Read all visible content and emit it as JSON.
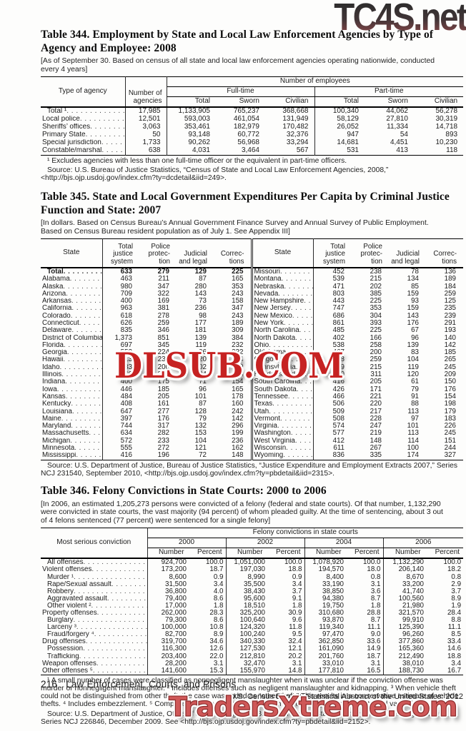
{
  "watermarks": {
    "top": {
      "text": "TC4S.net",
      "color_top": "#2c2c2c",
      "color_bottom": "#94494b"
    },
    "middle": {
      "text": "DLSUB.COM",
      "color": "#c62222"
    },
    "bottom": {
      "text": "TradersXtreme.com",
      "color": "#cf5858"
    }
  },
  "table344": {
    "title": "Table 344. Employment by State and Local Law Enforcement Agencies by Type of Agency and Employee: 2008",
    "bracket_note": "[As of September 30. Based on census of all state and local law enforcement agencies operating nationwide, conducted every 4 years]",
    "headers": {
      "type": "Type of agency",
      "agencies": "Number of agencies",
      "employees": "Number of employees",
      "fulltime": "Full-time",
      "parttime": "Part-time",
      "sub": [
        "Total",
        "Sworn",
        "Civilian",
        "Total",
        "Sworn",
        "Civilian"
      ]
    },
    "rows": [
      {
        "label": "Total ¹",
        "bold": true,
        "values": [
          "17,985",
          "1,133,905",
          "765,237",
          "368,668",
          "100,340",
          "44,062",
          "56,278"
        ]
      },
      {
        "label": "Local police",
        "bold": false,
        "values": [
          "12,501",
          "593,003",
          "461,054",
          "131,949",
          "58,129",
          "27,810",
          "30,319"
        ]
      },
      {
        "label": "Sheriffs’ offices",
        "bold": false,
        "values": [
          "3,063",
          "353,461",
          "182,979",
          "170,482",
          "26,052",
          "11,334",
          "14,718"
        ]
      },
      {
        "label": "Primary State",
        "bold": false,
        "values": [
          "50",
          "93,148",
          "60,772",
          "32,376",
          "947",
          "54",
          "893"
        ]
      },
      {
        "label": "Special jurisdiction",
        "bold": false,
        "values": [
          "1,733",
          "90,262",
          "56,968",
          "33,294",
          "14,681",
          "4,451",
          "10,230"
        ]
      },
      {
        "label": "Constable/marshal",
        "bold": false,
        "values": [
          "638",
          "4,031",
          "3,464",
          "567",
          "531",
          "413",
          "118"
        ]
      }
    ],
    "footnote": "¹ Excludes agencies with less than one full-time officer or the equivalent in part-time officers.",
    "source": "Source: U.S. Bureau of Justice Statistics, “Census of State and Local Law Enforcement Agencies, 2008,” <http://bjs.ojp.usdoj.gov/index.cfm?ty=dcdetail&iid=249>."
  },
  "table345": {
    "title": "Table 345. State and Local Government Expenditures Per Capita by Criminal Justice Function and State: 2007",
    "bracket_note": "[In dollars. Based on Census Bureau’s Annual Government Finance Survey and Annual Survey of Public Employment. Based on Census Bureau resident population as of July 1. See Appendix III]",
    "headers": {
      "state": "State",
      "total": "Total justice system",
      "police": "Police protec-tion",
      "judicial": "Judicial and legal",
      "corrections": "Correc-tions"
    },
    "rows": [
      {
        "bold": true,
        "left": [
          "Total",
          "633",
          "279",
          "129",
          "225"
        ],
        "right": [
          "Missouri",
          "452",
          "238",
          "78",
          "136"
        ]
      },
      {
        "bold": false,
        "left": [
          "Alabama",
          "463",
          "211",
          "87",
          "165"
        ],
        "right": [
          "Montana",
          "539",
          "215",
          "134",
          "189"
        ]
      },
      {
        "bold": false,
        "left": [
          "Alaska",
          "980",
          "347",
          "280",
          "353"
        ],
        "right": [
          "Nebraska",
          "471",
          "202",
          "85",
          "184"
        ]
      },
      {
        "bold": false,
        "left": [
          "Arizona",
          "709",
          "322",
          "143",
          "243"
        ],
        "right": [
          "Nevada",
          "803",
          "385",
          "159",
          "259"
        ]
      },
      {
        "bold": false,
        "left": [
          "Arkansas",
          "400",
          "169",
          "73",
          "158"
        ],
        "right": [
          "New Hampshire",
          "443",
          "225",
          "93",
          "125"
        ]
      },
      {
        "bold": false,
        "left": [
          "California",
          "963",
          "381",
          "236",
          "347"
        ],
        "right": [
          "New Jersey",
          "747",
          "353",
          "159",
          "235"
        ]
      },
      {
        "bold": false,
        "left": [
          "Colorado",
          "618",
          "278",
          "98",
          "243"
        ],
        "right": [
          "New Mexico",
          "686",
          "304",
          "143",
          "239"
        ]
      },
      {
        "bold": false,
        "left": [
          "Connecticut",
          "626",
          "259",
          "177",
          "189"
        ],
        "right": [
          "New York",
          "861",
          "393",
          "176",
          "291"
        ]
      },
      {
        "bold": false,
        "left": [
          "Delaware",
          "835",
          "346",
          "181",
          "309"
        ],
        "right": [
          "North Carolina",
          "485",
          "225",
          "67",
          "193"
        ]
      },
      {
        "bold": false,
        "left": [
          "District of Columbia",
          "1,373",
          "851",
          "139",
          "384"
        ],
        "right": [
          "North Dakota",
          "402",
          "166",
          "96",
          "140"
        ]
      },
      {
        "bold": false,
        "left": [
          "Florida",
          "697",
          "345",
          "119",
          "232"
        ],
        "right": [
          "Ohio",
          "538",
          "258",
          "139",
          "142"
        ]
      },
      {
        "bold": false,
        "left": [
          "Georgia",
          "552",
          "224",
          "96",
          "232"
        ],
        "right": [
          "Oklahoma",
          "467",
          "200",
          "83",
          "185"
        ]
      },
      {
        "bold": false,
        "left": [
          "Hawaii",
          "613",
          "239",
          "220",
          "154"
        ],
        "right": [
          "Oregon",
          "628",
          "259",
          "104",
          "265"
        ]
      },
      {
        "bold": false,
        "left": [
          "Idaho",
          "483",
          "200",
          "102",
          "180"
        ],
        "right": [
          "Pennsylvania",
          "579",
          "215",
          "119",
          "245"
        ]
      },
      {
        "bold": false,
        "left": [
          "Illinois",
          "566",
          "317",
          "104",
          "146"
        ],
        "right": [
          "Rhode Island",
          "640",
          "311",
          "120",
          "209"
        ]
      },
      {
        "bold": false,
        "left": [
          "Indiana",
          "400",
          "175",
          "71",
          "154"
        ],
        "right": [
          "South Carolina",
          "416",
          "205",
          "61",
          "150"
        ]
      },
      {
        "bold": false,
        "left": [
          "Iowa",
          "446",
          "185",
          "96",
          "165"
        ],
        "right": [
          "South Dakota",
          "426",
          "171",
          "79",
          "176"
        ]
      },
      {
        "bold": false,
        "left": [
          "Kansas",
          "484",
          "205",
          "101",
          "178"
        ],
        "right": [
          "Tennessee",
          "466",
          "221",
          "91",
          "154"
        ]
      },
      {
        "bold": false,
        "left": [
          "Kentucky",
          "408",
          "161",
          "87",
          "160"
        ],
        "right": [
          "Texas",
          "506",
          "220",
          "88",
          "198"
        ]
      },
      {
        "bold": false,
        "left": [
          "Louisiana",
          "647",
          "277",
          "128",
          "242"
        ],
        "right": [
          "Utah",
          "509",
          "217",
          "113",
          "179"
        ]
      },
      {
        "bold": false,
        "left": [
          "Maine",
          "397",
          "176",
          "79",
          "142"
        ],
        "right": [
          "Vermont",
          "508",
          "228",
          "97",
          "183"
        ]
      },
      {
        "bold": false,
        "left": [
          "Maryland",
          "744",
          "317",
          "132",
          "296"
        ],
        "right": [
          "Virginia",
          "574",
          "247",
          "101",
          "226"
        ]
      },
      {
        "bold": false,
        "left": [
          "Massachusetts",
          "634",
          "282",
          "153",
          "199"
        ],
        "right": [
          "Washington",
          "577",
          "219",
          "113",
          "245"
        ]
      },
      {
        "bold": false,
        "left": [
          "Michigan",
          "572",
          "233",
          "104",
          "236"
        ],
        "right": [
          "West Virginia",
          "412",
          "148",
          "114",
          "151"
        ]
      },
      {
        "bold": false,
        "left": [
          "Minnesota",
          "555",
          "272",
          "121",
          "162"
        ],
        "right": [
          "Wisconsin",
          "611",
          "267",
          "100",
          "244"
        ]
      },
      {
        "bold": false,
        "left": [
          "Mississippi",
          "416",
          "196",
          "72",
          "148"
        ],
        "right": [
          "Wyoming",
          "836",
          "335",
          "174",
          "327"
        ]
      }
    ],
    "source": "Source: U.S. Department of Justice, Bureau of Justice Statistics, “Justice Expenditure and Employment Extracts 2007,” Series NCJ 231540, September 2010, <http://bjs.ojp.usdoj.gov/index.cfm?ty=pbdetail&iid=2315>."
  },
  "table346": {
    "title": "Table 346. Felony Convictions in State Courts: 2000 to 2006",
    "bracket_note": "[In 2006, an estimated 1,205,273 persons were convicted of a felony (federal and state courts). Of that number, 1,132,290 were convicted in state courts, the vast majority (94 percent) of whom pleaded guilty. At the time of sentencing, about 3 out of 4 felons sentenced (77 percent) were sentenced for a single felony]",
    "headers": {
      "conviction": "Most serious conviction",
      "group": "Felony convictions in state courts",
      "years": [
        "2000",
        "2002",
        "2004",
        "2006"
      ],
      "number": "Number",
      "percent": "Percent"
    },
    "rows": [
      {
        "label": "All offenses",
        "indent": 1,
        "values": [
          "924,700",
          "100.0",
          "1,051,000",
          "100.0",
          "1,078,920",
          "100.0",
          "1,132,290",
          "100.0"
        ]
      },
      {
        "label": "Violent offenses",
        "indent": 0,
        "values": [
          "173,200",
          "18.7",
          "197,030",
          "18.8",
          "194,570",
          "18.0",
          "206,140",
          "18.2"
        ]
      },
      {
        "label": "Murder ¹",
        "indent": 1,
        "values": [
          "8,600",
          "0.9",
          "8,990",
          "0.9",
          "8,400",
          "0.8",
          "8,670",
          "0.8"
        ]
      },
      {
        "label": "Rape/Sexual assault",
        "indent": 1,
        "values": [
          "31,500",
          "3.4",
          "35,500",
          "3.4",
          "33,190",
          "3.1",
          "33,200",
          "2.9"
        ]
      },
      {
        "label": "Robbery",
        "indent": 1,
        "values": [
          "36,800",
          "4.0",
          "38,430",
          "3.7",
          "38,850",
          "3.6",
          "41,740",
          "3.7"
        ]
      },
      {
        "label": "Aggravated assault",
        "indent": 1,
        "values": [
          "79,400",
          "8.6",
          "95,600",
          "9.1",
          "94,380",
          "8.7",
          "100,560",
          "8.9"
        ]
      },
      {
        "label": "Other violent ²",
        "indent": 1,
        "values": [
          "17,000",
          "1.8",
          "18,510",
          "1.8",
          "19,750",
          "1.8",
          "21,980",
          "1.9"
        ]
      },
      {
        "label": "Property offenses",
        "indent": 0,
        "values": [
          "262,000",
          "28.3",
          "325,200",
          "30.9",
          "310,680",
          "28.8",
          "321,570",
          "28.4"
        ]
      },
      {
        "label": "Burglary",
        "indent": 1,
        "values": [
          "79,300",
          "8.6",
          "100,640",
          "9.6",
          "93,870",
          "8.7",
          "99,910",
          "8.8"
        ]
      },
      {
        "label": "Larceny ³",
        "indent": 1,
        "values": [
          "100,000",
          "10.8",
          "124,320",
          "11.8",
          "119,340",
          "11.1",
          "125,390",
          "11.1"
        ]
      },
      {
        "label": "Fraud/forgery ⁴",
        "indent": 1,
        "values": [
          "82,700",
          "8.9",
          "100,240",
          "9.5",
          "97,470",
          "9.0",
          "96,260",
          "8.5"
        ]
      },
      {
        "label": "Drug offenses",
        "indent": 0,
        "values": [
          "319,700",
          "34.6",
          "340,330",
          "32.4",
          "362,850",
          "33.6",
          "377,860",
          "33.4"
        ]
      },
      {
        "label": "Possession",
        "indent": 1,
        "values": [
          "116,300",
          "12.6",
          "127,530",
          "12.1",
          "161,090",
          "14.9",
          "165,360",
          "14.6"
        ]
      },
      {
        "label": "Trafficking",
        "indent": 1,
        "values": [
          "203,400",
          "22.0",
          "212,810",
          "20.2",
          "201,760",
          "18.7",
          "212,490",
          "18.8"
        ]
      },
      {
        "label": "Weapon offenses",
        "indent": 0,
        "values": [
          "28,200",
          "3.1",
          "32,470",
          "3.1",
          "33,010",
          "3.1",
          "38,010",
          "3.4"
        ]
      },
      {
        "label": "Other offenses ⁵",
        "indent": 0,
        "values": [
          "141,600",
          "15.3",
          "155,970",
          "14.8",
          "177,810",
          "16.5",
          "188,730",
          "16.7"
        ]
      }
    ],
    "footnotes": "¹ A small number of cases were classified as nonnegligent manslaughter when it was unclear if the conviction offense was murder or nonnegligent manslaughter. ² Includes offenses such as negligent manslaughter and kidnapping. ³ When vehicle theft could not be distinguished from other theft, the case was coded as “other theft.”  This results in a conservative estimate of vehicle thefts. ⁴ Includes embezzlement. ⁵ Composed of nonviolent offenses such as receiving stolen property and vandalism.",
    "source_prefix": "Source: U.S. Department of Justice, Office of Justice Programs, Bureau of Justice Statistics, ",
    "source_italic": "Criminal Sentencing Statistics,",
    "source_suffix": " Series NCJ 226846, December 2009. See <http://bjs.ojp.usdoj.gov/index.cfm?ty=pbdetail&iid=2152>."
  },
  "footer": {
    "page_number": "216",
    "section": "Law Enforcement, Courts, and Prisons",
    "imprint": "U.S. Census Bureau, Statistical Abstract of the United States: 2012"
  }
}
